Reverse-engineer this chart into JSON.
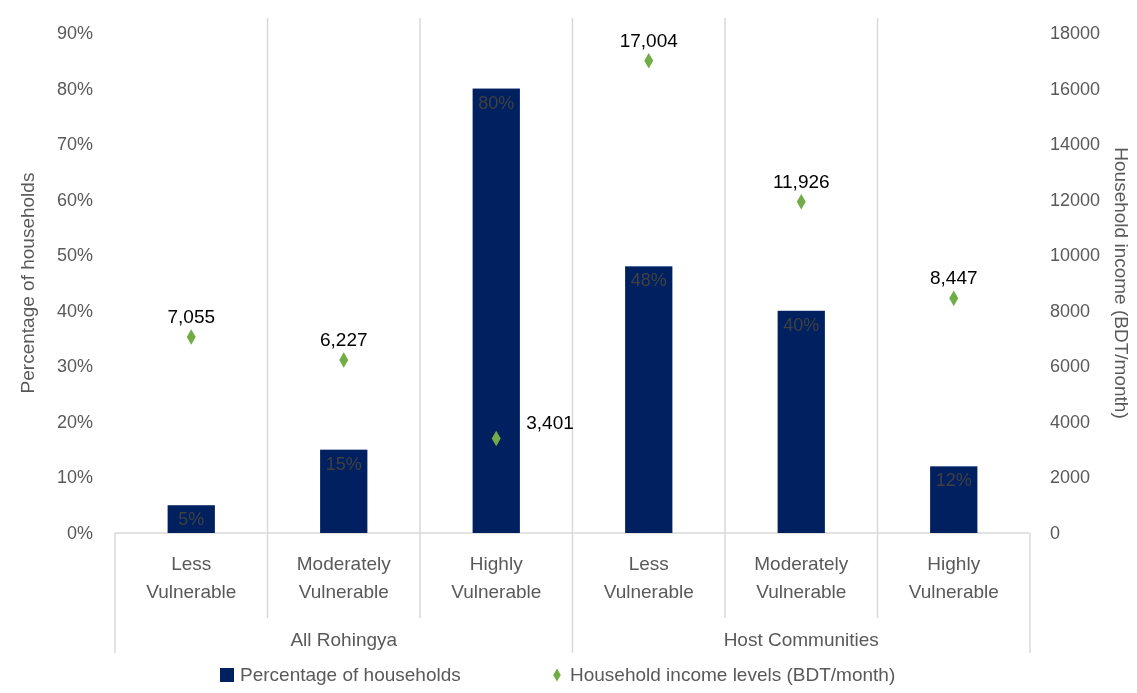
{
  "chart_data": {
    "type": "bar",
    "ylabel": "Percentage of households",
    "y2label": "Household income (BDT/month)",
    "categories": [
      "Less Vulnerable",
      "Moderately Vulnerable",
      "Highly Vulnerable",
      "Less Vulnerable",
      "Moderately Vulnerable",
      "Highly Vulnerable"
    ],
    "series": [
      {
        "name": "Percentage of households",
        "color": "#002060",
        "values": [
          5,
          15,
          80,
          48,
          40,
          12
        ],
        "value_labels": [
          "5%",
          "15%",
          "80%",
          "48%",
          "40%",
          "12%"
        ]
      },
      {
        "name": "Household income levels (BDT/month)",
        "type": "scatter",
        "axis": "y2",
        "color": "#70ad47",
        "marker": "diamond",
        "values": [
          7055,
          6227,
          3401,
          17004,
          11926,
          8447
        ],
        "value_labels": [
          "7,055",
          "6,227",
          "3,401",
          "17,004",
          "11,926",
          "8,447"
        ]
      }
    ],
    "data_labels": true,
    "ylim": [
      0,
      90
    ],
    "yticks": [
      {
        "value": 0,
        "label": "0%"
      },
      {
        "value": 10,
        "label": "10%"
      },
      {
        "value": 20,
        "label": "20%"
      },
      {
        "value": 30,
        "label": "30%"
      },
      {
        "value": 40,
        "label": "40%"
      },
      {
        "value": 50,
        "label": "50%"
      },
      {
        "value": 60,
        "label": "60%"
      },
      {
        "value": 70,
        "label": "70%"
      },
      {
        "value": 80,
        "label": "80%"
      },
      {
        "value": 90,
        "label": "90%"
      }
    ],
    "y2lim": [
      0,
      18000
    ],
    "y2ticks": [
      0,
      2000,
      4000,
      6000,
      8000,
      10000,
      12000,
      14000,
      16000,
      18000
    ],
    "annotations": [
      "All Rohingya",
      "Host Communities"
    ],
    "grid": "x",
    "legend": "bottom"
  }
}
